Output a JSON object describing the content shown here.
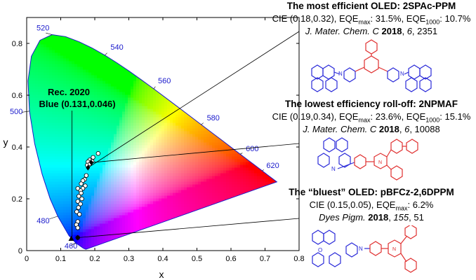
{
  "chart_data": {
    "type": "scatter",
    "xlabel": "x",
    "ylabel": "y",
    "xlim": [
      0,
      0.8
    ],
    "ylim": [
      0,
      0.9
    ],
    "x_ticks": [
      "0",
      "0.1",
      "0.2",
      "0.3",
      "0.4",
      "0.5",
      "0.6",
      "0.7",
      "0.8"
    ],
    "y_ticks": [
      "0",
      "0.2",
      "0.4",
      "0.6",
      "0.8"
    ],
    "locus": [
      {
        "x": 0.1741,
        "y": 0.005
      },
      {
        "x": 0.1666,
        "y": 0.0089
      },
      {
        "x": 0.144,
        "y": 0.0297
      },
      {
        "x": 0.1241,
        "y": 0.0578
      },
      {
        "x": 0.0913,
        "y": 0.1327
      },
      {
        "x": 0.0687,
        "y": 0.2007
      },
      {
        "x": 0.0454,
        "y": 0.295
      },
      {
        "x": 0.0235,
        "y": 0.4127
      },
      {
        "x": 0.0082,
        "y": 0.5384
      },
      {
        "x": 0.0039,
        "y": 0.6548
      },
      {
        "x": 0.0139,
        "y": 0.7502
      },
      {
        "x": 0.0389,
        "y": 0.812
      },
      {
        "x": 0.0743,
        "y": 0.8338
      },
      {
        "x": 0.1142,
        "y": 0.8262
      },
      {
        "x": 0.1547,
        "y": 0.8059
      },
      {
        "x": 0.1929,
        "y": 0.7816
      },
      {
        "x": 0.2296,
        "y": 0.7543
      },
      {
        "x": 0.2658,
        "y": 0.7243
      },
      {
        "x": 0.3016,
        "y": 0.6923
      },
      {
        "x": 0.3373,
        "y": 0.6589
      },
      {
        "x": 0.3731,
        "y": 0.6245
      },
      {
        "x": 0.4087,
        "y": 0.5896
      },
      {
        "x": 0.4441,
        "y": 0.5547
      },
      {
        "x": 0.4788,
        "y": 0.5202
      },
      {
        "x": 0.5125,
        "y": 0.4866
      },
      {
        "x": 0.5448,
        "y": 0.4544
      },
      {
        "x": 0.5752,
        "y": 0.4242
      },
      {
        "x": 0.6029,
        "y": 0.3965
      },
      {
        "x": 0.627,
        "y": 0.3725
      },
      {
        "x": 0.6482,
        "y": 0.3514
      },
      {
        "x": 0.6658,
        "y": 0.334
      },
      {
        "x": 0.6915,
        "y": 0.3083
      },
      {
        "x": 0.7079,
        "y": 0.292
      },
      {
        "x": 0.7347,
        "y": 0.2653
      }
    ],
    "wavelength_labels": [
      {
        "text": "460",
        "x": 0.144,
        "y": 0.0297
      },
      {
        "text": "480",
        "x": 0.0913,
        "y": 0.1327
      },
      {
        "text": "500",
        "x": 0.0082,
        "y": 0.5384
      },
      {
        "text": "520",
        "x": 0.0743,
        "y": 0.8338
      },
      {
        "text": "540",
        "x": 0.2296,
        "y": 0.7543
      },
      {
        "text": "560",
        "x": 0.3731,
        "y": 0.6245
      },
      {
        "text": "580",
        "x": 0.5125,
        "y": 0.4866
      },
      {
        "text": "600",
        "x": 0.627,
        "y": 0.3725
      },
      {
        "text": "620",
        "x": 0.6915,
        "y": 0.3083
      }
    ],
    "series": [
      {
        "points": [
          {
            "x": 0.21,
            "y": 0.375
          },
          {
            "x": 0.195,
            "y": 0.36
          },
          {
            "x": 0.185,
            "y": 0.35
          },
          {
            "x": 0.18,
            "y": 0.343
          },
          {
            "x": 0.192,
            "y": 0.345
          },
          {
            "x": 0.178,
            "y": 0.33
          },
          {
            "x": 0.186,
            "y": 0.335
          },
          {
            "x": 0.175,
            "y": 0.29
          },
          {
            "x": 0.17,
            "y": 0.275
          },
          {
            "x": 0.165,
            "y": 0.27
          },
          {
            "x": 0.16,
            "y": 0.258
          },
          {
            "x": 0.172,
            "y": 0.25
          },
          {
            "x": 0.165,
            "y": 0.24
          },
          {
            "x": 0.158,
            "y": 0.232
          },
          {
            "x": 0.15,
            "y": 0.24
          },
          {
            "x": 0.16,
            "y": 0.222
          },
          {
            "x": 0.153,
            "y": 0.21
          },
          {
            "x": 0.162,
            "y": 0.2
          },
          {
            "x": 0.15,
            "y": 0.19
          },
          {
            "x": 0.158,
            "y": 0.18
          },
          {
            "x": 0.152,
            "y": 0.166
          },
          {
            "x": 0.147,
            "y": 0.15
          },
          {
            "x": 0.155,
            "y": 0.14
          },
          {
            "x": 0.15,
            "y": 0.112
          },
          {
            "x": 0.146,
            "y": 0.1
          },
          {
            "x": 0.15,
            "y": 0.088
          },
          {
            "x": 0.15,
            "y": 0.05
          }
        ]
      }
    ],
    "highlighted": [
      {
        "x": 0.18,
        "y": 0.32
      },
      {
        "x": 0.19,
        "y": 0.34
      },
      {
        "x": 0.15,
        "y": 0.05
      }
    ],
    "rec2020": {
      "label_line1": "Rec. 2020",
      "label_line2": "Blue (0.131,0.046)",
      "x": 0.131,
      "y": 0.046
    }
  },
  "panels": [
    {
      "title": "The most efficient OLED: 2SPAc-PPM",
      "cie": "CIE (0.18,0.32), EQE",
      "sub1": "max",
      "v1": ": 31.5%, EQE",
      "sub2": "1000",
      "v2": ": 10.7%",
      "journal": "J. Mater. Chem. C",
      "year": "2018",
      "vol": "6",
      "page": ", 2351"
    },
    {
      "title": "The lowest efficiency roll-off: 2NPMAF",
      "cie": "CIE (0.19,0.34), EQE",
      "sub1": "max",
      "v1": ": 23.6%, EQE",
      "sub2": "1000",
      "v2": ": 15.1%",
      "journal": "J. Mater. Chem. C",
      "year": "2018",
      "vol": "6",
      "page": ", 10088"
    },
    {
      "title": "The “bluest” OLED: pBFCz-2,6DPPM",
      "cie": "CIE (0.15,0.05), EQE",
      "sub1": "max",
      "v1": ": 6.2%",
      "journal": "Dyes Pigm.",
      "year": "2018",
      "vol": "155",
      "page": ", 51"
    }
  ],
  "colors": {
    "donor": "#2b2bd9",
    "acceptor": "#e03030",
    "axis": "#000000",
    "wavelength": "#1a1acc"
  }
}
